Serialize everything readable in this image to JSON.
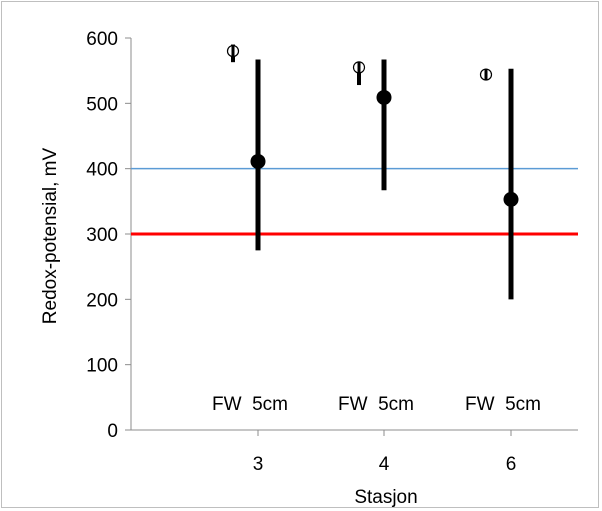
{
  "chart_data": {
    "type": "scatter",
    "xlabel": "Stasjon",
    "ylabel": "Redox-potensial, mV",
    "ylim": [
      0,
      600
    ],
    "y_ticks": [
      "0",
      "100",
      "200",
      "300",
      "400",
      "500",
      "600"
    ],
    "categories": [
      "3",
      "4",
      "6"
    ],
    "annotations": [
      "FW  5cm",
      "FW  5cm",
      "FW  5cm"
    ],
    "series": [
      {
        "marker": "half-filled-circle",
        "values": [
          {
            "category": "3",
            "mean": 580,
            "min": 563,
            "max": 590
          },
          {
            "category": "4",
            "mean": 555,
            "min": 528,
            "max": 560
          },
          {
            "category": "6",
            "mean": 544,
            "min": 540,
            "max": 549
          }
        ]
      },
      {
        "marker": "filled-circle",
        "values": [
          {
            "category": "3",
            "mean": 411,
            "min": 275,
            "max": 567
          },
          {
            "category": "4",
            "mean": 509,
            "min": 367,
            "max": 567
          },
          {
            "category": "6",
            "mean": 353,
            "min": 200,
            "max": 553
          }
        ]
      }
    ],
    "reference_lines": [
      {
        "y": 400,
        "color": "#5b9bd5"
      },
      {
        "y": 300,
        "color": "#ff0000"
      }
    ],
    "grid": false,
    "legend": "none"
  }
}
